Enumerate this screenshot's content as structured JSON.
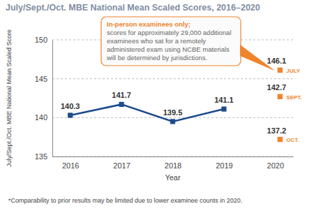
{
  "chart_data": {
    "type": "line",
    "title": "July/Sept./Oct. MBE National Mean Scaled Scores, 2016–2020",
    "y_label": "July/Sept./Oct. MBE National Mean Scaled Score",
    "x_label": "Year",
    "categories": [
      "2016",
      "2017",
      "2018",
      "2019",
      "2020"
    ],
    "ylim": [
      135,
      150
    ],
    "yticks": [
      135,
      140,
      145,
      150
    ],
    "grid": true,
    "data_labels": true,
    "series": [
      {
        "color": "#1d4b8c",
        "marker": "square",
        "line_style": "solid",
        "values": [
          140.3,
          141.7,
          139.5,
          141.1,
          null
        ]
      },
      {
        "name": "JULY",
        "type": "scatter",
        "color": "#f0842c",
        "marker": "square",
        "values": [
          null,
          null,
          null,
          null,
          146.1
        ]
      },
      {
        "name": "SEPT.",
        "type": "scatter",
        "color": "#f0842c",
        "marker": "square",
        "values": [
          null,
          null,
          null,
          null,
          142.7
        ]
      },
      {
        "name": "OCT.",
        "type": "scatter",
        "color": "#f0842c",
        "marker": "square",
        "values": [
          null,
          null,
          null,
          null,
          137.2
        ]
      }
    ],
    "annotation": {
      "bold": "In-person examinees only;",
      "text": "scores for approximately 29,000 additional examinees who sat for a remotely administered exam using NCBE materials will be determined by jurisdictions."
    },
    "footnote": "*Comparability to prior results may be limited due to lower examinee counts in 2020."
  }
}
